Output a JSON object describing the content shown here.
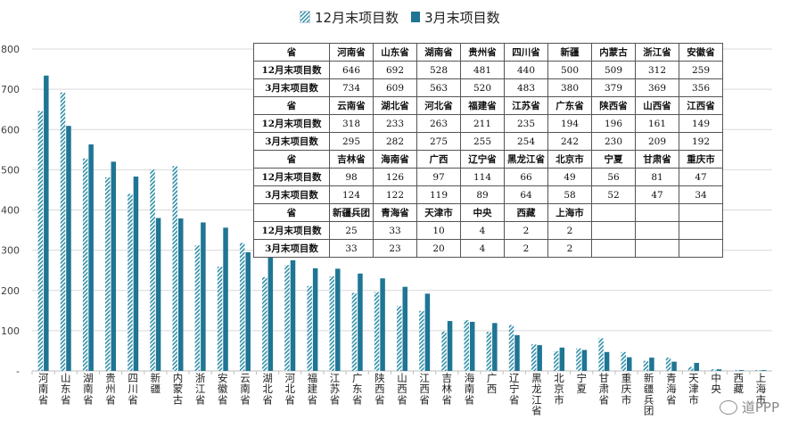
{
  "chart_data": {
    "type": "bar",
    "categories": [
      "河南省",
      "山东省",
      "湖南省",
      "贵州省",
      "四川省",
      "新疆",
      "内蒙古",
      "浙江省",
      "安徽省",
      "云南省",
      "湖北省",
      "河北省",
      "福建省",
      "江苏省",
      "广东省",
      "陕西省",
      "山西省",
      "江西省",
      "吉林省",
      "海南省",
      "广西",
      "辽宁省",
      "黑龙江省",
      "北京市",
      "宁夏",
      "甘肃省",
      "重庆市",
      "新疆兵团",
      "青海省",
      "天津市",
      "中央",
      "西藏",
      "上海市"
    ],
    "series": [
      {
        "name": "12月末项目数",
        "values": [
          646,
          692,
          528,
          481,
          440,
          500,
          509,
          312,
          259,
          318,
          233,
          263,
          211,
          235,
          194,
          196,
          161,
          149,
          98,
          126,
          97,
          114,
          66,
          49,
          56,
          81,
          47,
          25,
          33,
          10,
          4,
          2,
          2
        ]
      },
      {
        "name": "3月末项目数",
        "values": [
          734,
          609,
          563,
          520,
          483,
          380,
          379,
          369,
          356,
          295,
          282,
          275,
          255,
          254,
          242,
          230,
          209,
          192,
          124,
          122,
          119,
          89,
          64,
          58,
          52,
          47,
          34,
          33,
          23,
          20,
          4,
          2,
          2
        ]
      }
    ],
    "y_ticks": [
      "-",
      "100",
      "200",
      "300",
      "400",
      "500",
      "600",
      "700",
      "800"
    ],
    "ylim": [
      0,
      800
    ],
    "legend_position": "top-center",
    "colors": {
      "series1": "#2f8fa8",
      "series2": "#1f7594"
    }
  },
  "table": {
    "row_labels": {
      "province": "省",
      "dec": "12月末项目数",
      "mar": "3月末项目数"
    },
    "blocks": [
      {
        "names": [
          "河南省",
          "山东省",
          "湖南省",
          "贵州省",
          "四川省",
          "新疆",
          "内蒙古",
          "浙江省",
          "安徽省"
        ],
        "dec": [
          "646",
          "692",
          "528",
          "481",
          "440",
          "500",
          "509",
          "312",
          "259"
        ],
        "mar": [
          "734",
          "609",
          "563",
          "520",
          "483",
          "380",
          "379",
          "369",
          "356"
        ]
      },
      {
        "names": [
          "云南省",
          "湖北省",
          "河北省",
          "福建省",
          "江苏省",
          "广东省",
          "陕西省",
          "山西省",
          "江西省"
        ],
        "dec": [
          "318",
          "233",
          "263",
          "211",
          "235",
          "194",
          "196",
          "161",
          "149"
        ],
        "mar": [
          "295",
          "282",
          "275",
          "255",
          "254",
          "242",
          "230",
          "209",
          "192"
        ]
      },
      {
        "names": [
          "吉林省",
          "海南省",
          "广西",
          "辽宁省",
          "黑龙江省",
          "北京市",
          "宁夏",
          "甘肃省",
          "重庆市"
        ],
        "dec": [
          "98",
          "126",
          "97",
          "114",
          "66",
          "49",
          "56",
          "81",
          "47"
        ],
        "mar": [
          "124",
          "122",
          "119",
          "89",
          "64",
          "58",
          "52",
          "47",
          "34"
        ]
      },
      {
        "names": [
          "新疆兵团",
          "青海省",
          "天津市",
          "中央",
          "西藏",
          "上海市",
          "",
          "",
          ""
        ],
        "dec": [
          "25",
          "33",
          "10",
          "4",
          "2",
          "2",
          "",
          "",
          ""
        ],
        "mar": [
          "33",
          "23",
          "20",
          "4",
          "2",
          "2",
          "",
          "",
          ""
        ]
      }
    ]
  },
  "watermark": "道PPP"
}
